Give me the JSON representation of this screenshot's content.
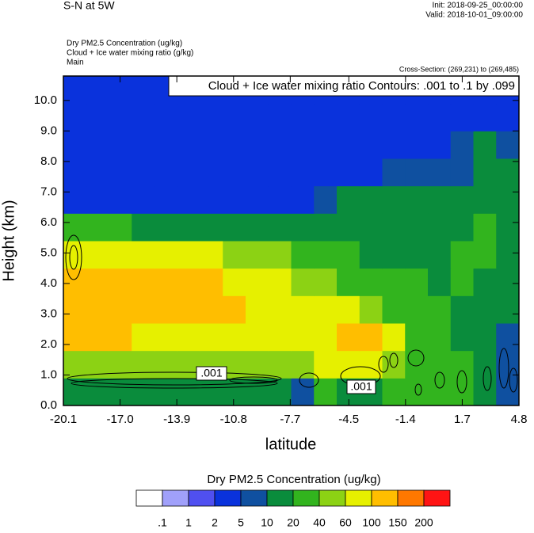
{
  "chart_data": {
    "type": "contour",
    "title": "S-N at 5W",
    "init": "Init: 2018-09-25_00:00:00",
    "valid": "Valid: 2018-10-01_09:00:00",
    "field_labels": [
      "Dry PM2.5 Concentration   (ug/kg)",
      "Cloud + Ice water mixing ratio   (g/kg)",
      "Main"
    ],
    "cross_section": "Cross-Section: (269,231) to (269,485)",
    "contour_info": "Cloud + Ice water mixing ratio Contours: .001 to .1 by .099",
    "contour_labels": [
      ".001",
      ".001"
    ],
    "x_label": "latitude",
    "y_label": "Height (km)",
    "xlim": [
      -20.1,
      4.8
    ],
    "ylim": [
      0,
      10.8
    ],
    "xticks": [
      {
        "value": -20.1,
        "label": "-20.1"
      },
      {
        "value": -17.0,
        "label": "-17.0"
      },
      {
        "value": -13.9,
        "label": "-13.9"
      },
      {
        "value": -10.8,
        "label": "-10.8"
      },
      {
        "value": -7.7,
        "label": "-7.7"
      },
      {
        "value": -4.5,
        "label": "-4.5"
      },
      {
        "value": -1.4,
        "label": "-1.4"
      },
      {
        "value": 1.7,
        "label": "1.7"
      },
      {
        "value": 4.8,
        "label": "4.8"
      }
    ],
    "yticks": [
      {
        "value": 0,
        "label": "0.0"
      },
      {
        "value": 1,
        "label": "1.0"
      },
      {
        "value": 2,
        "label": "2.0"
      },
      {
        "value": 3,
        "label": "3.0"
      },
      {
        "value": 4,
        "label": "4.0"
      },
      {
        "value": 5,
        "label": "5.0"
      },
      {
        "value": 6,
        "label": "6.0"
      },
      {
        "value": 7,
        "label": "7.0"
      },
      {
        "value": 8,
        "label": "8.0"
      },
      {
        "value": 9,
        "label": "9.0"
      },
      {
        "value": 10,
        "label": "10.0"
      }
    ],
    "x": [
      -19.48,
      -18.23,
      -16.99,
      -15.74,
      -14.5,
      -13.25,
      -12.01,
      -10.76,
      -9.52,
      -8.27,
      -7.03,
      -5.78,
      -4.54,
      -3.29,
      -2.05,
      -0.8,
      0.44,
      1.69,
      2.93,
      4.18
    ],
    "y": [
      0.45,
      1.35,
      2.25,
      3.15,
      4.05,
      4.95,
      5.85,
      6.75,
      7.65,
      8.55,
      9.45,
      10.35
    ],
    "z": [
      [
        15,
        15,
        15,
        15,
        15,
        15,
        15,
        15,
        15,
        15,
        7,
        30,
        15,
        15,
        30,
        30,
        30,
        30,
        15,
        7
      ],
      [
        50,
        50,
        50,
        50,
        50,
        50,
        50,
        50,
        50,
        50,
        50,
        80,
        80,
        80,
        50,
        30,
        30,
        30,
        15,
        7
      ],
      [
        120,
        120,
        120,
        80,
        80,
        80,
        80,
        80,
        80,
        80,
        80,
        80,
        120,
        120,
        80,
        30,
        30,
        15,
        15,
        7
      ],
      [
        120,
        120,
        120,
        120,
        120,
        120,
        120,
        120,
        80,
        80,
        80,
        80,
        80,
        50,
        30,
        30,
        30,
        15,
        15,
        15
      ],
      [
        120,
        120,
        120,
        120,
        120,
        120,
        120,
        80,
        80,
        80,
        50,
        50,
        30,
        30,
        30,
        30,
        15,
        30,
        15,
        15
      ],
      [
        80,
        80,
        80,
        80,
        80,
        80,
        80,
        50,
        50,
        50,
        30,
        30,
        30,
        15,
        15,
        15,
        15,
        30,
        30,
        15
      ],
      [
        30,
        30,
        30,
        15,
        15,
        15,
        15,
        15,
        15,
        15,
        15,
        15,
        15,
        15,
        15,
        15,
        15,
        15,
        30,
        15
      ],
      [
        3,
        3,
        3,
        3,
        3,
        3,
        3,
        3,
        3,
        3,
        3,
        7,
        15,
        15,
        15,
        15,
        15,
        15,
        15,
        15
      ],
      [
        3,
        3,
        3,
        3,
        3,
        3,
        3,
        3,
        3,
        3,
        3,
        3,
        3,
        3,
        7,
        7,
        7,
        7,
        15,
        15
      ],
      [
        3,
        3,
        3,
        3,
        3,
        3,
        3,
        3,
        3,
        3,
        3,
        3,
        3,
        3,
        3,
        3,
        3,
        7,
        15,
        7
      ],
      [
        3,
        3,
        3,
        3,
        3,
        3,
        3,
        3,
        3,
        3,
        3,
        3,
        3,
        3,
        2,
        2,
        3,
        2,
        3,
        3
      ],
      [
        3,
        3,
        3,
        3,
        3,
        3,
        3,
        3,
        3,
        3,
        3,
        3,
        3,
        3,
        2,
        2,
        2,
        3,
        3,
        3
      ]
    ],
    "colorbar_title": "Dry PM2.5 Concentration  (ug/kg)",
    "levels": [
      {
        "value": 0.1,
        "label": ".1"
      },
      1,
      2,
      5,
      10,
      20,
      40,
      60,
      100,
      150,
      200
    ],
    "colors": [
      "#ffffff",
      "#a0a0fa",
      "#5050f0",
      "#0a32dc",
      "#0f50a0",
      "#0a8c3c",
      "#32b41e",
      "#8cd214",
      "#e6f000",
      "#ffbe00",
      "#ff7800",
      "#ff1414"
    ]
  }
}
